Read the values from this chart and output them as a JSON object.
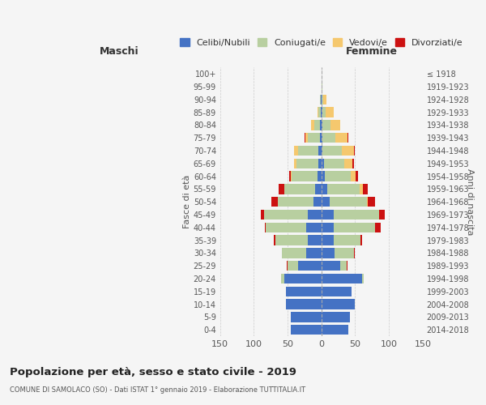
{
  "age_groups": [
    "0-4",
    "5-9",
    "10-14",
    "15-19",
    "20-24",
    "25-29",
    "30-34",
    "35-39",
    "40-44",
    "45-49",
    "50-54",
    "55-59",
    "60-64",
    "65-69",
    "70-74",
    "75-79",
    "80-84",
    "85-89",
    "90-94",
    "95-99",
    "100+"
  ],
  "birth_years": [
    "2014-2018",
    "2009-2013",
    "2004-2008",
    "1999-2003",
    "1994-1998",
    "1989-1993",
    "1984-1988",
    "1979-1983",
    "1974-1978",
    "1969-1973",
    "1964-1968",
    "1959-1963",
    "1954-1958",
    "1949-1953",
    "1944-1948",
    "1939-1943",
    "1934-1938",
    "1929-1933",
    "1924-1928",
    "1919-1923",
    "≤ 1918"
  ],
  "colors": {
    "celibi": "#4472c4",
    "coniugati": "#b8cfa0",
    "vedovi": "#f5c86e",
    "divorziati": "#cc1111"
  },
  "legend_labels": [
    "Celibi/Nubili",
    "Coniugati/e",
    "Vedovi/e",
    "Divorziati/e"
  ],
  "maschi": {
    "celibi": [
      45,
      45,
      52,
      52,
      55,
      35,
      23,
      20,
      22,
      20,
      12,
      9,
      6,
      5,
      5,
      2,
      2,
      1,
      1,
      0,
      0
    ],
    "coniugati": [
      0,
      0,
      0,
      0,
      5,
      15,
      35,
      48,
      60,
      65,
      52,
      46,
      38,
      32,
      30,
      18,
      8,
      3,
      1,
      0,
      0
    ],
    "vedovi": [
      0,
      0,
      0,
      0,
      0,
      0,
      0,
      0,
      0,
      0,
      0,
      0,
      1,
      3,
      5,
      4,
      5,
      2,
      0,
      0,
      0
    ],
    "divorziati": [
      0,
      0,
      0,
      0,
      0,
      1,
      1,
      3,
      2,
      5,
      10,
      8,
      3,
      1,
      1,
      1,
      0,
      0,
      0,
      0,
      0
    ]
  },
  "femmine": {
    "nubili": [
      40,
      42,
      50,
      45,
      60,
      28,
      20,
      18,
      18,
      18,
      12,
      9,
      5,
      4,
      2,
      1,
      1,
      1,
      0,
      0,
      0
    ],
    "coniugate": [
      0,
      0,
      0,
      0,
      3,
      10,
      28,
      40,
      62,
      68,
      55,
      48,
      38,
      30,
      28,
      20,
      12,
      5,
      3,
      1,
      0
    ],
    "vedove": [
      0,
      0,
      0,
      0,
      0,
      0,
      0,
      0,
      0,
      0,
      2,
      4,
      8,
      12,
      18,
      18,
      15,
      12,
      5,
      1,
      0
    ],
    "divorziate": [
      0,
      0,
      0,
      0,
      0,
      1,
      2,
      2,
      8,
      8,
      10,
      8,
      3,
      2,
      2,
      1,
      0,
      0,
      0,
      0,
      0
    ]
  },
  "xlim": 150,
  "title": "Popolazione per età, sesso e stato civile - 2019",
  "subtitle": "COMUNE DI SAMOLACO (SO) - Dati ISTAT 1° gennaio 2019 - Elaborazione TUTTITALIA.IT",
  "xlabel_left": "Maschi",
  "xlabel_right": "Femmine",
  "ylabel_left": "Fasce di età",
  "ylabel_right": "Anni di nascita",
  "bg_color": "#f5f5f5",
  "grid_color": "#cccccc"
}
